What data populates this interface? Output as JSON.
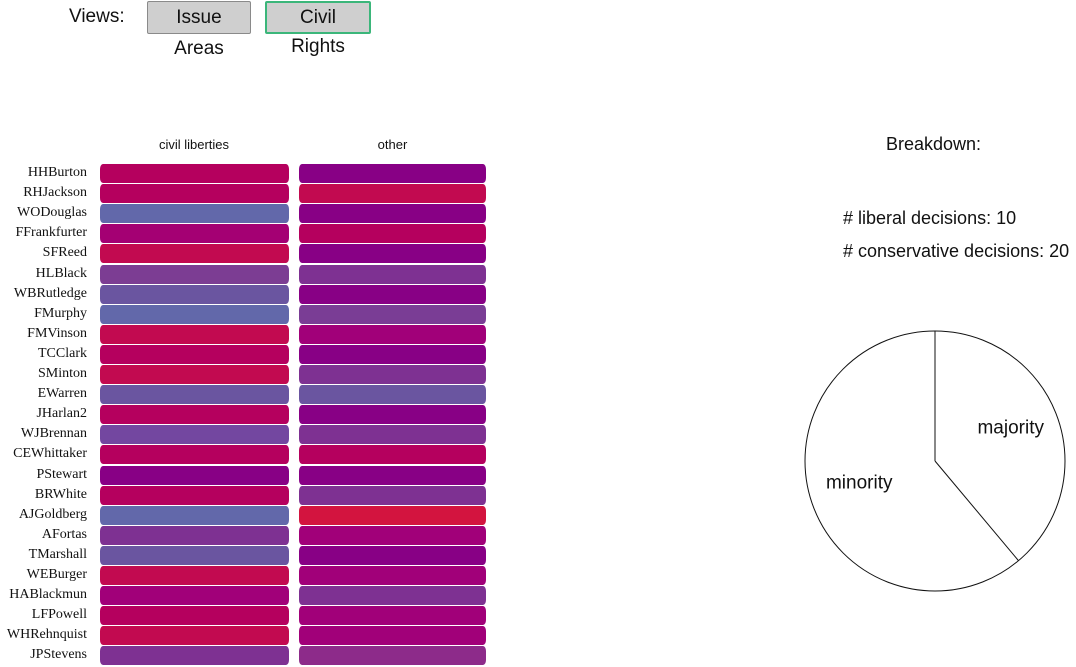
{
  "views": {
    "label": "Views:",
    "buttons": [
      {
        "label": "Issue Areas",
        "active": false
      },
      {
        "label": "Civil Rights",
        "active": true
      }
    ],
    "active_border_color": "#3bb67a"
  },
  "grid": {
    "columns": [
      "civil liberties",
      "other"
    ],
    "rows": [
      {
        "justice": "HHBurton",
        "colors": [
          "#b5005e",
          "#880085"
        ]
      },
      {
        "justice": "RHJackson",
        "colors": [
          "#b5005e",
          "#c20a50"
        ]
      },
      {
        "justice": "WODouglas",
        "colors": [
          "#6268aa",
          "#880085"
        ]
      },
      {
        "justice": "FFrankfurter",
        "colors": [
          "#a40073",
          "#b5005e"
        ]
      },
      {
        "justice": "SFReed",
        "colors": [
          "#c20a50",
          "#880085"
        ]
      },
      {
        "justice": "HLBlack",
        "colors": [
          "#7c3d93",
          "#7e3192"
        ]
      },
      {
        "justice": "WBRutledge",
        "colors": [
          "#6a55a0",
          "#880085"
        ]
      },
      {
        "justice": "FMurphy",
        "colors": [
          "#6268aa",
          "#7a3d95"
        ]
      },
      {
        "justice": "FMVinson",
        "colors": [
          "#c20a50",
          "#a10079"
        ]
      },
      {
        "justice": "TCClark",
        "colors": [
          "#b5005e",
          "#880085"
        ]
      },
      {
        "justice": "SMinton",
        "colors": [
          "#c20a50",
          "#7e3192"
        ]
      },
      {
        "justice": "EWarren",
        "colors": [
          "#6a55a0",
          "#6a55a0"
        ]
      },
      {
        "justice": "JHarlan2",
        "colors": [
          "#b5005e",
          "#880085"
        ]
      },
      {
        "justice": "WJBrennan",
        "colors": [
          "#7347a0",
          "#7e3192"
        ]
      },
      {
        "justice": "CEWhittaker",
        "colors": [
          "#b5005e",
          "#b5005e"
        ]
      },
      {
        "justice": "PStewart",
        "colors": [
          "#880085",
          "#880085"
        ]
      },
      {
        "justice": "BRWhite",
        "colors": [
          "#b5005e",
          "#7e3192"
        ]
      },
      {
        "justice": "AJGoldberg",
        "colors": [
          "#6268aa",
          "#d3143f"
        ]
      },
      {
        "justice": "AFortas",
        "colors": [
          "#7e3192",
          "#a10079"
        ]
      },
      {
        "justice": "TMarshall",
        "colors": [
          "#6a55a0",
          "#880085"
        ]
      },
      {
        "justice": "WEBurger",
        "colors": [
          "#c20a50",
          "#a10079"
        ]
      },
      {
        "justice": "HABlackmun",
        "colors": [
          "#a10079",
          "#7e3192"
        ]
      },
      {
        "justice": "LFPowell",
        "colors": [
          "#b5005e",
          "#a10079"
        ]
      },
      {
        "justice": "WHRehnquist",
        "colors": [
          "#c20a50",
          "#a10079"
        ]
      },
      {
        "justice": "JPStevens",
        "colors": [
          "#7e3192",
          "#8d2b8a"
        ]
      }
    ]
  },
  "breakdown": {
    "title": "Breakdown:",
    "liberal_text": "# liberal decisions: 10",
    "conservative_text": "# conservative decisions: 20",
    "pie": {
      "slices": [
        {
          "label": "majority",
          "fraction": 0.389
        },
        {
          "label": "minority",
          "fraction": 0.611
        }
      ]
    }
  }
}
